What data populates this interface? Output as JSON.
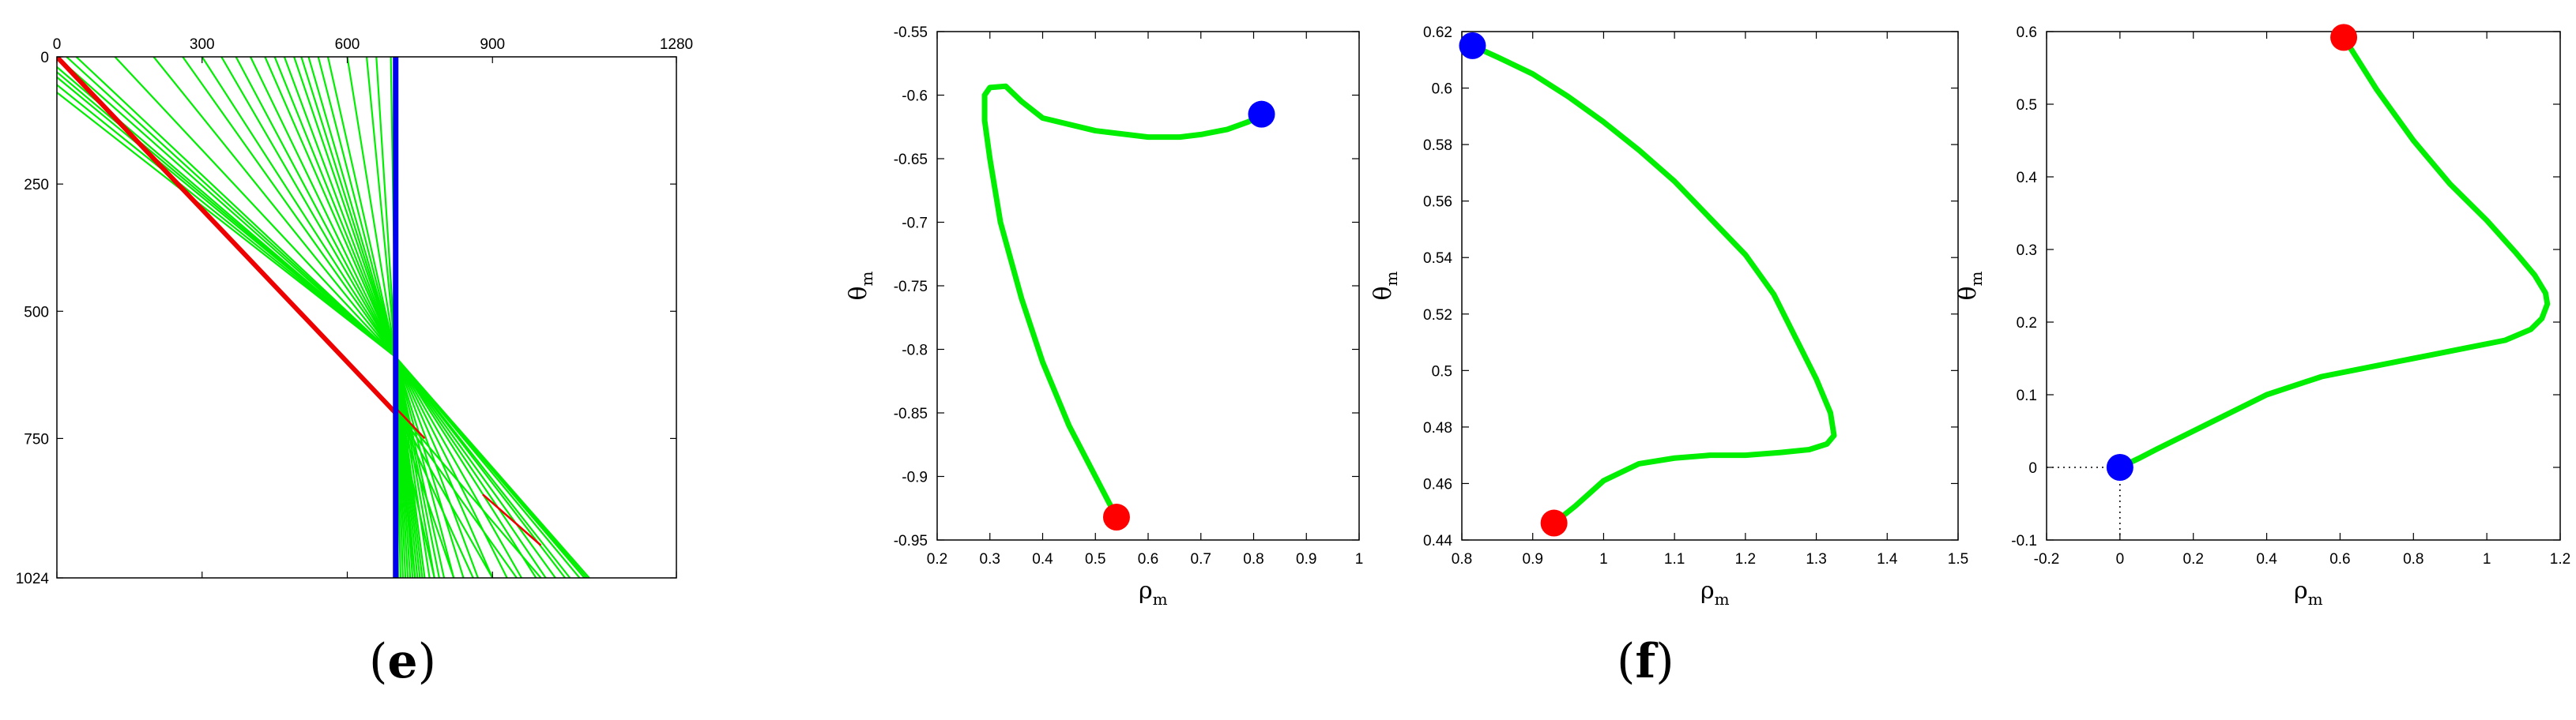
{
  "captions": {
    "left_letter": "e",
    "right_letter": "f"
  },
  "colors": {
    "line": "#00ee00",
    "lidar": "#ee0000",
    "vertical": "#0000ee",
    "start_marker": "#ff0000",
    "end_marker": "#0000ff"
  },
  "chart_data": [
    {
      "type": "line",
      "title": "",
      "xlabel": "",
      "ylabel": "",
      "xlim": [
        0,
        1280
      ],
      "ylim": [
        0,
        1024
      ],
      "x_axis_position": "top",
      "y_inverted": true,
      "x_ticks": [
        "0",
        "300",
        "600",
        "900",
        "1280"
      ],
      "y_ticks": [
        "0",
        "250",
        "500",
        "750",
        "1024"
      ],
      "vertical_line": {
        "x": 700,
        "y": [
          0,
          1024
        ]
      },
      "red_line": {
        "x": [
          0,
          700
        ],
        "y": [
          0,
          700
        ]
      },
      "fan_upper": {
        "pivot": [
          700,
          590
        ],
        "top_x": [
          0,
          20,
          40,
          120,
          200,
          260,
          300,
          340,
          370,
          400,
          430,
          450,
          470,
          490,
          505,
          520,
          540,
          560,
          600,
          640,
          660,
          690
        ]
      },
      "fan_left_group": {
        "pivot": [
          700,
          590
        ],
        "start_points": [
          [
            0,
            20
          ],
          [
            0,
            30
          ],
          [
            0,
            40
          ],
          [
            0,
            55
          ],
          [
            0,
            70
          ]
        ]
      },
      "fan_lower": {
        "pivot": [
          700,
          590
        ],
        "bottom_x": [
          700,
          705,
          710,
          715,
          720,
          725,
          730,
          735,
          740,
          745,
          750,
          755,
          760,
          770,
          780,
          790,
          800,
          820,
          840,
          870,
          900,
          930,
          960,
          990,
          1010,
          1030,
          1050,
          1060,
          1080,
          1090,
          1095,
          1100
        ]
      },
      "fan_lower_pivot2": {
        "pivot": [
          700,
          690
        ],
        "bottom_x": [
          740,
          780,
          820,
          860,
          900,
          950,
          1000
        ]
      },
      "red_segments": [
        [
          [
            700,
            690
          ],
          [
            760,
            750
          ]
        ],
        [
          [
            880,
            860
          ],
          [
            1000,
            960
          ]
        ]
      ]
    },
    {
      "type": "line",
      "title": "",
      "xlabel": "ρ",
      "xlabel_sub": "m",
      "ylabel": "θ",
      "ylabel_sub": "m",
      "xlim": [
        0.2,
        1
      ],
      "ylim": [
        -0.95,
        -0.55
      ],
      "x_ticks": [
        "0.2",
        "0.3",
        "0.4",
        "0.5",
        "0.6",
        "0.7",
        "0.8",
        "0.9",
        "1"
      ],
      "y_ticks": [
        "-0.55",
        "-0.6",
        "-0.65",
        "-0.7",
        "-0.75",
        "-0.8",
        "-0.85",
        "-0.9",
        "-0.95"
      ],
      "x": [
        0.54,
        0.5,
        0.45,
        0.4,
        0.36,
        0.32,
        0.3,
        0.29,
        0.29,
        0.3,
        0.33,
        0.36,
        0.4,
        0.5,
        0.6,
        0.66,
        0.7,
        0.75,
        0.79,
        0.815
      ],
      "y": [
        -0.932,
        -0.9,
        -0.86,
        -0.81,
        -0.76,
        -0.7,
        -0.65,
        -0.62,
        -0.6,
        -0.594,
        -0.593,
        -0.605,
        -0.618,
        -0.628,
        -0.633,
        -0.633,
        -0.631,
        -0.627,
        -0.621,
        -0.615
      ],
      "start_point": [
        0.54,
        -0.932
      ],
      "end_point": [
        0.815,
        -0.615
      ]
    },
    {
      "type": "line",
      "title": "",
      "xlabel": "ρ",
      "xlabel_sub": "m",
      "ylabel": "θ",
      "ylabel_sub": "m",
      "xlim": [
        0.8,
        1.5
      ],
      "ylim": [
        0.44,
        0.62
      ],
      "x_ticks": [
        "0.8",
        "0.9",
        "1",
        "1.1",
        "1.2",
        "1.3",
        "1.4",
        "1.5"
      ],
      "y_ticks": [
        "0.62",
        "0.6",
        "0.58",
        "0.56",
        "0.54",
        "0.52",
        "0.5",
        "0.48",
        "0.46",
        "0.44"
      ],
      "x": [
        0.93,
        0.96,
        1.0,
        1.05,
        1.1,
        1.15,
        1.2,
        1.25,
        1.29,
        1.315,
        1.325,
        1.32,
        1.3,
        1.27,
        1.24,
        1.2,
        1.15,
        1.1,
        1.05,
        1.0,
        0.95,
        0.9,
        0.85,
        0.815
      ],
      "y": [
        0.446,
        0.452,
        0.461,
        0.467,
        0.469,
        0.47,
        0.47,
        0.471,
        0.472,
        0.474,
        0.477,
        0.485,
        0.497,
        0.512,
        0.527,
        0.541,
        0.554,
        0.567,
        0.578,
        0.588,
        0.597,
        0.605,
        0.611,
        0.615
      ],
      "start_point": [
        0.93,
        0.446
      ],
      "end_point": [
        0.815,
        0.615
      ]
    },
    {
      "type": "line",
      "title": "",
      "xlabel": "ρ",
      "xlabel_sub": "m",
      "ylabel": "θ",
      "ylabel_sub": "m",
      "xlim": [
        -0.2,
        1.2
      ],
      "ylim": [
        -0.1,
        0.6
      ],
      "x_ticks": [
        "-0.2",
        "0",
        "0.2",
        "0.4",
        "0.6",
        "0.8",
        "1",
        "1.2"
      ],
      "y_ticks": [
        "0.6",
        "0.5",
        "0.4",
        "0.3",
        "0.2",
        "0.1",
        "0",
        "-0.1"
      ],
      "x": [
        0.61,
        0.7,
        0.8,
        0.9,
        1.0,
        1.08,
        1.13,
        1.16,
        1.165,
        1.15,
        1.12,
        1.05,
        0.95,
        0.85,
        0.7,
        0.55,
        0.4,
        0.3,
        0.2,
        0.1,
        0.05,
        0.0
      ],
      "y": [
        0.592,
        0.52,
        0.45,
        0.39,
        0.34,
        0.295,
        0.265,
        0.24,
        0.225,
        0.205,
        0.19,
        0.175,
        0.165,
        0.155,
        0.14,
        0.125,
        0.1,
        0.075,
        0.05,
        0.025,
        0.012,
        0.0
      ],
      "start_point": [
        0.61,
        0.592
      ],
      "end_point": [
        0.0,
        0.0
      ],
      "reference_lines": "dotted from origin marker to axes"
    }
  ]
}
